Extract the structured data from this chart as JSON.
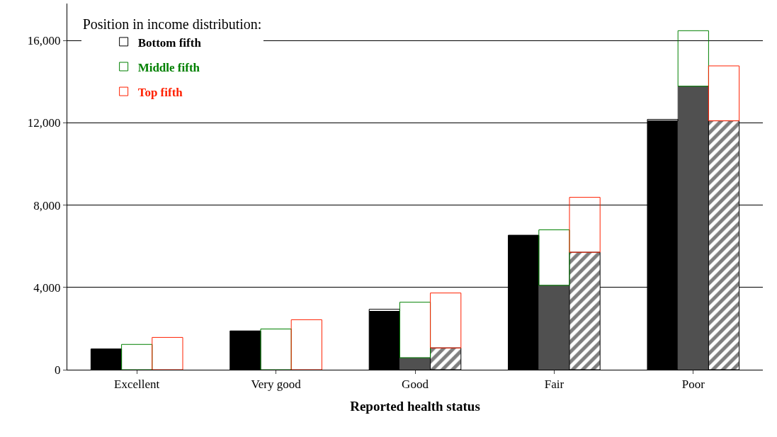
{
  "chart_data": {
    "type": "bar",
    "xlabel": "Reported health status",
    "legend_title": "Position in income distribution:",
    "categories": [
      "Excellent",
      "Very good",
      "Good",
      "Fair",
      "Poor"
    ],
    "series": [
      {
        "color": "#000000",
        "values": [
          1000,
          1880,
          2840,
          6530,
          12100
        ]
      },
      {
        "color": "#505050",
        "values": [
          null,
          null,
          580,
          4100,
          13780
        ]
      },
      {
        "color": "#000000",
        "values": [
          null,
          null,
          1060,
          5710,
          12100
        ]
      },
      {
        "name": "Bottom fifth",
        "color": "#000000",
        "values": [
          0,
          0,
          100,
          0,
          70
        ],
        "base": [
          1000,
          1880,
          2840,
          6530,
          12100
        ]
      },
      {
        "name": "Middle fifth",
        "color": "#008000",
        "values": [
          1230,
          1980,
          2700,
          2700,
          2700
        ],
        "base": [
          0,
          0,
          580,
          4100,
          13780
        ]
      },
      {
        "name": "Top fifth",
        "color": "#ff2000",
        "values": [
          1570,
          2430,
          2670,
          2670,
          2670
        ],
        "base": [
          0,
          0,
          1060,
          5710,
          12100
        ]
      }
    ],
    "ylim": [
      0,
      17800
    ],
    "yticks": [
      0,
      {
        "value": 4000,
        "label": "4,000"
      },
      {
        "value": 8000,
        "label": "8,000"
      },
      {
        "value": 12000,
        "label": "12,000"
      },
      {
        "value": 16000,
        "label": "16,000"
      }
    ],
    "grid": "y",
    "legend": "top left"
  }
}
